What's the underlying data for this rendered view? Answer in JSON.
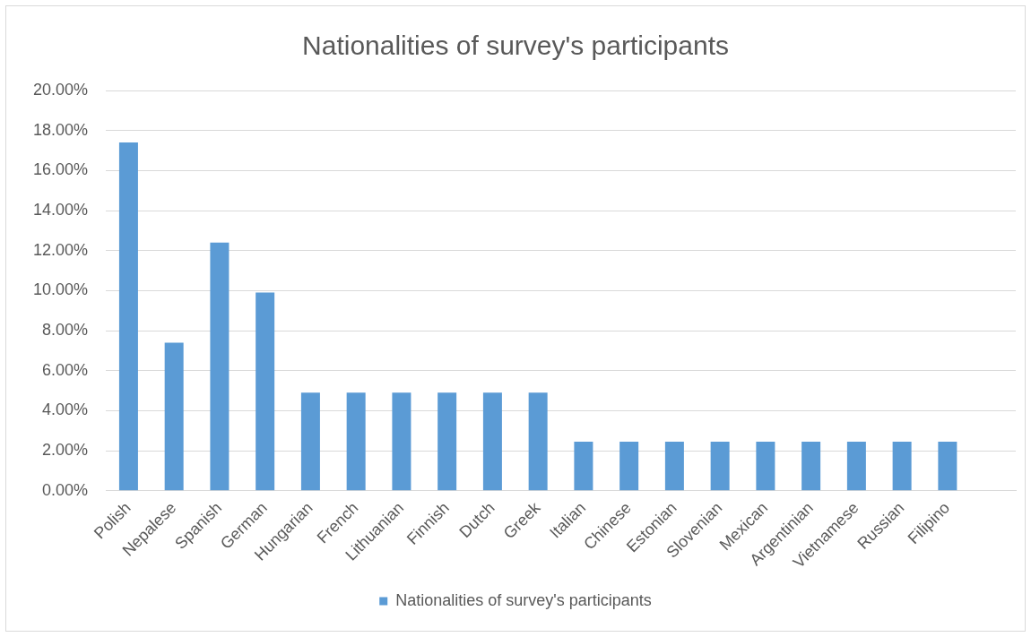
{
  "chart_data": {
    "type": "bar",
    "title": "Nationalities of survey's participants",
    "categories": [
      "Polish",
      "Nepalese",
      "Spanish",
      "German",
      "Hungarian",
      "French",
      "Lithuanian",
      "Finnish",
      "Dutch",
      "Greek",
      "Italian",
      "Chinese",
      "Estonian",
      "Slovenian",
      "Mexican",
      "Argentinian",
      "Vietnamese",
      "Russian",
      "Filipino",
      null
    ],
    "series": [
      {
        "name": "Nationalities of survey's participants",
        "color": "#5b9bd5",
        "values": [
          17.4,
          7.4,
          12.4,
          9.9,
          4.9,
          4.9,
          4.9,
          4.9,
          4.9,
          4.9,
          2.45,
          2.45,
          2.45,
          2.45,
          2.45,
          2.45,
          2.45,
          2.45,
          2.45,
          null
        ]
      }
    ],
    "ylim": [
      0,
      20
    ],
    "yticks": [
      {
        "value": 0,
        "label": "0.00%"
      },
      {
        "value": 2,
        "label": "2.00%"
      },
      {
        "value": 4,
        "label": "4.00%"
      },
      {
        "value": 6,
        "label": "6.00%"
      },
      {
        "value": 8,
        "label": "8.00%"
      },
      {
        "value": 10,
        "label": "10.00%"
      },
      {
        "value": 12,
        "label": "12.00%"
      },
      {
        "value": 14,
        "label": "14.00%"
      },
      {
        "value": 16,
        "label": "16.00%"
      },
      {
        "value": 18,
        "label": "18.00%"
      },
      {
        "value": 20,
        "label": "20.00%"
      }
    ],
    "grid": "y",
    "legend": "bottom"
  }
}
